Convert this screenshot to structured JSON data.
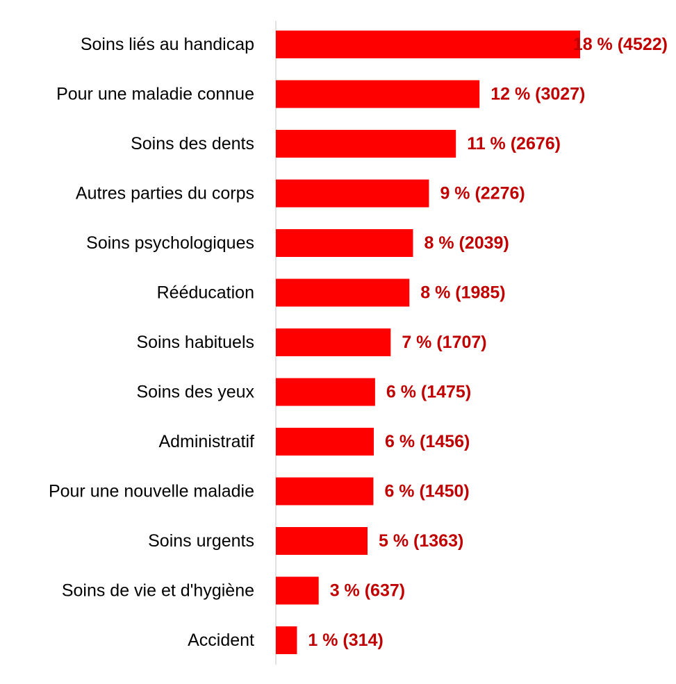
{
  "chart_data": {
    "type": "bar",
    "orientation": "horizontal",
    "categories": [
      "Soins liés au handicap",
      "Pour une maladie connue",
      "Soins des dents",
      "Autres parties du corps",
      "Soins psychologiques",
      "Rééducation",
      "Soins habituels",
      "Soins des yeux",
      "Administratif",
      "Pour une nouvelle maladie",
      "Soins urgents",
      "Soins de vie et d'hygiène",
      "Accident"
    ],
    "values": [
      4522,
      3027,
      2676,
      2276,
      2039,
      1985,
      1707,
      1475,
      1456,
      1450,
      1363,
      637,
      314
    ],
    "data_labels": [
      "18 % (4522)",
      "12 % (3027)",
      "11 % (2676)",
      "9 % (2276)",
      "8 % (2039)",
      "8 % (1985)",
      "7 % (1707)",
      "6 % (1475)",
      "6 % (1456)",
      "6 % (1450)",
      "5 % (1363)",
      "3 % (637)",
      "1 % (314)"
    ],
    "title": "",
    "xlabel": "",
    "ylabel": "",
    "xlim": [
      0,
      4522
    ],
    "grid": false,
    "legend": "none",
    "colors": {
      "bar": "#ff0000",
      "label": "#c00000",
      "axis": "#d9d9d9"
    }
  }
}
